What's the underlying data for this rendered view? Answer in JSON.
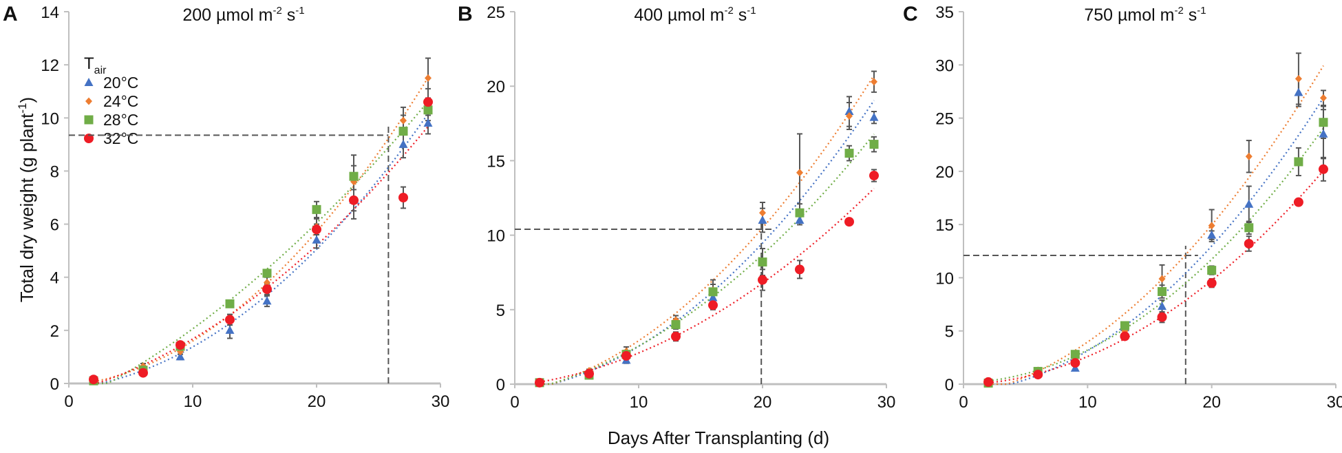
{
  "colors": {
    "20°C": "#4472c4",
    "24°C": "#ed7d31",
    "28°C": "#70ad47",
    "32°C": "#ee1c25",
    "axis": "#bfbfbf",
    "errorbar": "#555555",
    "refline": "#555555"
  },
  "figure": {
    "ylabel_main": "Total dry weight  (g plant",
    "ylabel_sup": "-1",
    "ylabel_end": ")",
    "xlabel": "Days After Transplanting (d)"
  },
  "legend": {
    "title": "T",
    "title_sub": "air",
    "items": [
      {
        "label": "20°C",
        "marker": "triangle"
      },
      {
        "label": "24°C",
        "marker": "diamond"
      },
      {
        "label": "28°C",
        "marker": "square"
      },
      {
        "label": "32°C",
        "marker": "circle"
      }
    ]
  },
  "chart_data": [
    {
      "type": "scatter",
      "panel": "A",
      "title": "200 µmol m",
      "title_sup1": "-2",
      "title_mid": " s",
      "title_sup2": "-1",
      "xlim": [
        0,
        30
      ],
      "xticks": [
        0,
        10,
        20,
        30
      ],
      "ylim": [
        0,
        14
      ],
      "yticks": [
        0,
        2,
        4,
        6,
        8,
        10,
        12,
        14
      ],
      "x": [
        2,
        6,
        9,
        13,
        16,
        20,
        23,
        27,
        29
      ],
      "series": [
        {
          "name": "20°C",
          "values": [
            0.1,
            0.5,
            1.0,
            2.0,
            3.1,
            5.4,
            6.9,
            9.0,
            9.8
          ],
          "err": [
            0.05,
            0.1,
            0.1,
            0.3,
            0.2,
            0.3,
            0.4,
            0.5,
            0.4
          ]
        },
        {
          "name": "24°C",
          "values": [
            0.15,
            0.65,
            1.2,
            2.4,
            3.8,
            5.9,
            7.6,
            9.9,
            11.5
          ],
          "err": [
            0.05,
            0.1,
            0.1,
            0.2,
            0.2,
            0.3,
            0.6,
            0.5,
            0.75
          ]
        },
        {
          "name": "28°C",
          "values": [
            0.1,
            0.5,
            1.4,
            3.0,
            4.15,
            6.55,
            7.8,
            9.5,
            10.3
          ],
          "err": [
            0.05,
            0.1,
            0.1,
            0.1,
            0.1,
            0.3,
            0.8,
            0.6,
            0.4
          ]
        },
        {
          "name": "32°C",
          "values": [
            0.15,
            0.4,
            1.45,
            2.4,
            3.55,
            5.8,
            6.9,
            7.0,
            10.6
          ],
          "err": [
            0.05,
            0.1,
            0.1,
            0.2,
            0.2,
            0.2,
            0.7,
            0.4,
            0.5
          ]
        }
      ],
      "reference": {
        "y": 9.35,
        "x": 25.8
      }
    },
    {
      "type": "scatter",
      "panel": "B",
      "title": "400 µmol m",
      "title_sup1": "-2",
      "title_mid": " s",
      "title_sup2": "-1",
      "xlim": [
        0,
        30
      ],
      "xticks": [
        0,
        10,
        20,
        30
      ],
      "ylim": [
        0,
        25
      ],
      "yticks": [
        0,
        5,
        10,
        15,
        20,
        25
      ],
      "x": [
        2,
        6,
        9,
        13,
        16,
        20,
        23,
        27,
        29
      ],
      "series": [
        {
          "name": "20°C",
          "values": [
            0.1,
            0.8,
            1.6,
            4.1,
            5.8,
            11.0,
            11.0,
            18.3,
            17.9
          ],
          "err": [
            0.05,
            0.1,
            0.2,
            0.3,
            0.4,
            0.8,
            0.3,
            1.0,
            0.4
          ]
        },
        {
          "name": "24°C",
          "values": [
            0.1,
            0.9,
            2.2,
            4.3,
            6.3,
            11.5,
            14.2,
            18.0,
            20.3
          ],
          "err": [
            0.05,
            0.1,
            0.3,
            0.3,
            0.7,
            0.7,
            2.6,
            0.9,
            0.7
          ]
        },
        {
          "name": "28°C",
          "values": [
            0.1,
            0.6,
            2.0,
            4.0,
            6.2,
            8.2,
            11.5,
            15.5,
            16.1
          ],
          "err": [
            0.05,
            0.1,
            0.2,
            0.3,
            0.5,
            0.9,
            0.6,
            0.5,
            0.5
          ]
        },
        {
          "name": "32°C",
          "values": [
            0.1,
            0.7,
            1.9,
            3.2,
            5.3,
            7.0,
            7.7,
            10.9,
            14.0
          ],
          "err": [
            0.05,
            0.1,
            0.2,
            0.3,
            0.3,
            0.7,
            0.6,
            0.2,
            0.4
          ]
        }
      ],
      "reference": {
        "y": 10.4,
        "x": 19.9
      }
    },
    {
      "type": "scatter",
      "panel": "C",
      "title": "750 µmol m",
      "title_sup1": "-2",
      "title_mid": " s",
      "title_sup2": "-1",
      "xlim": [
        0,
        30
      ],
      "xticks": [
        0,
        10,
        20,
        30
      ],
      "ylim": [
        0,
        35
      ],
      "yticks": [
        0,
        5,
        10,
        15,
        20,
        25,
        30,
        35
      ],
      "x": [
        2,
        6,
        9,
        13,
        16,
        20,
        23,
        27,
        29
      ],
      "series": [
        {
          "name": "20°C",
          "values": [
            0.1,
            1.0,
            1.5,
            5.3,
            7.3,
            14.0,
            16.9,
            27.4,
            23.5
          ],
          "err": [
            0.05,
            0.1,
            0.2,
            0.3,
            0.6,
            0.4,
            1.7,
            1.3,
            2.3
          ]
        },
        {
          "name": "24°C",
          "values": [
            0.2,
            1.3,
            2.5,
            5.0,
            9.9,
            14.9,
            21.4,
            28.7,
            26.9
          ],
          "err": [
            0.05,
            0.1,
            0.2,
            0.3,
            1.3,
            1.5,
            1.5,
            2.4,
            0.7
          ]
        },
        {
          "name": "28°C",
          "values": [
            0.1,
            1.2,
            2.8,
            5.5,
            8.7,
            10.7,
            14.7,
            20.9,
            24.6
          ],
          "err": [
            0.05,
            0.1,
            0.2,
            0.2,
            0.6,
            0.4,
            0.6,
            1.3,
            1.5
          ]
        },
        {
          "name": "32°C",
          "values": [
            0.2,
            0.9,
            2.0,
            4.5,
            6.3,
            9.5,
            13.2,
            17.1,
            20.2
          ],
          "err": [
            0.05,
            0.1,
            0.2,
            0.3,
            0.5,
            0.4,
            0.7,
            0.3,
            1.1
          ]
        }
      ],
      "reference": {
        "y": 12.1,
        "x": 17.9
      }
    }
  ]
}
